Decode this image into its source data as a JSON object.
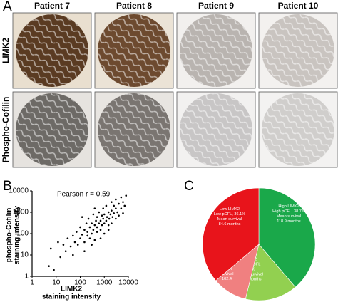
{
  "panel_a": {
    "label": "A",
    "columns": [
      "Patient 7",
      "Patient 8",
      "Patient 9",
      "Patient 10"
    ],
    "rows": [
      "LIMK2",
      "Phospho-Cofilin"
    ]
  },
  "chart_data": [
    {
      "type": "scatter",
      "panel": "B",
      "annotation": "Pearson r = 0.59",
      "xlabel": [
        "LIMK2",
        "staining intensity"
      ],
      "ylabel": [
        "phospho-Cofilin",
        "staining intensity"
      ],
      "log_scale": true,
      "color": "#000000",
      "xlim": [
        1,
        10000
      ],
      "ylim": [
        1,
        10000
      ],
      "xticks": [
        1,
        10,
        100,
        1000,
        10000
      ],
      "yticks": [
        1,
        10,
        100,
        1000,
        10000
      ],
      "x": [
        5,
        6,
        8,
        12,
        15,
        20,
        25,
        30,
        40,
        50,
        60,
        70,
        80,
        100,
        100,
        120,
        150,
        150,
        180,
        200,
        200,
        220,
        250,
        250,
        300,
        300,
        350,
        350,
        400,
        400,
        450,
        500,
        500,
        500,
        600,
        600,
        700,
        700,
        800,
        800,
        900,
        900,
        1000,
        1000,
        1000,
        1200,
        1200,
        1300,
        1500,
        1500,
        1600,
        1800,
        2000,
        2000,
        2000,
        2200,
        2500,
        2500,
        3000,
        3000,
        3000,
        3500,
        4000,
        4000,
        5000,
        5000,
        6000,
        6000,
        7000,
        8000,
        300,
        150,
        50,
        700,
        1500,
        400,
        120
      ],
      "y": [
        3,
        20,
        2,
        40,
        8,
        30,
        15,
        60,
        25,
        80,
        40,
        120,
        30,
        60,
        200,
        90,
        40,
        150,
        300,
        80,
        120,
        500,
        60,
        200,
        100,
        300,
        150,
        800,
        50,
        250,
        400,
        120,
        200,
        600,
        300,
        1000,
        150,
        400,
        250,
        700,
        500,
        1500,
        100,
        300,
        800,
        400,
        2000,
        600,
        250,
        1000,
        500,
        800,
        300,
        1200,
        3000,
        600,
        900,
        2000,
        500,
        1500,
        4000,
        1000,
        700,
        2500,
        1500,
        5000,
        900,
        3000,
        2000,
        6000,
        30,
        15,
        10,
        60,
        150,
        1500,
        600
      ]
    },
    {
      "type": "pie",
      "panel": "C",
      "values": [
        38.7,
        15,
        10,
        36.1
      ],
      "colors": [
        "#1aa84a",
        "#92d050",
        "#f08080",
        "#e8141b"
      ],
      "labels": [
        [
          "High LIMK2",
          "High pCFL, 38.7%",
          "Mean survival",
          "118.9 months"
        ],
        [
          "LIMK2",
          "High pCFL",
          "15%",
          "Mean survival",
          "107 months"
        ],
        [
          "High LIMK2",
          "Low pCFL",
          "10%",
          "Mean",
          "survival",
          "102.4"
        ],
        [
          "Low LIMK2",
          "Low pCFL, 36.1%",
          "Mean survival",
          "84.6 months"
        ]
      ]
    }
  ]
}
